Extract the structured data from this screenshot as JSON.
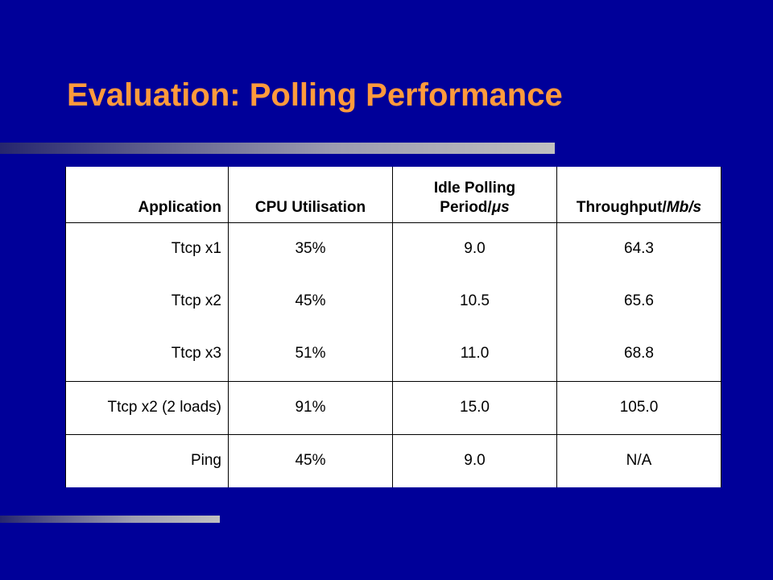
{
  "slide": {
    "title": "Evaluation: Polling Performance"
  },
  "table": {
    "headers": {
      "application": "Application",
      "cpu": "CPU Utilisation",
      "idle_line1": "Idle Polling",
      "idle_line2_prefix": "Period/",
      "idle_line2_unit": "μs",
      "throughput_prefix": "Throughput/",
      "throughput_unit": "Mb/s"
    },
    "rows": [
      {
        "application": "Ttcp x1",
        "cpu": "35%",
        "idle": "9.0",
        "throughput": "64.3"
      },
      {
        "application": "Ttcp x2",
        "cpu": "45%",
        "idle": "10.5",
        "throughput": "65.6"
      },
      {
        "application": "Ttcp x3",
        "cpu": "51%",
        "idle": "11.0",
        "throughput": "68.8"
      },
      {
        "application": "Ttcp x2 (2 loads)",
        "cpu": "91%",
        "idle": "15.0",
        "throughput": "105.0"
      },
      {
        "application": "Ping",
        "cpu": "45%",
        "idle": "9.0",
        "throughput": "N/A"
      }
    ]
  },
  "colors": {
    "background": "#000099",
    "title": "#ff9a3c",
    "table_bg": "#ffffff"
  }
}
